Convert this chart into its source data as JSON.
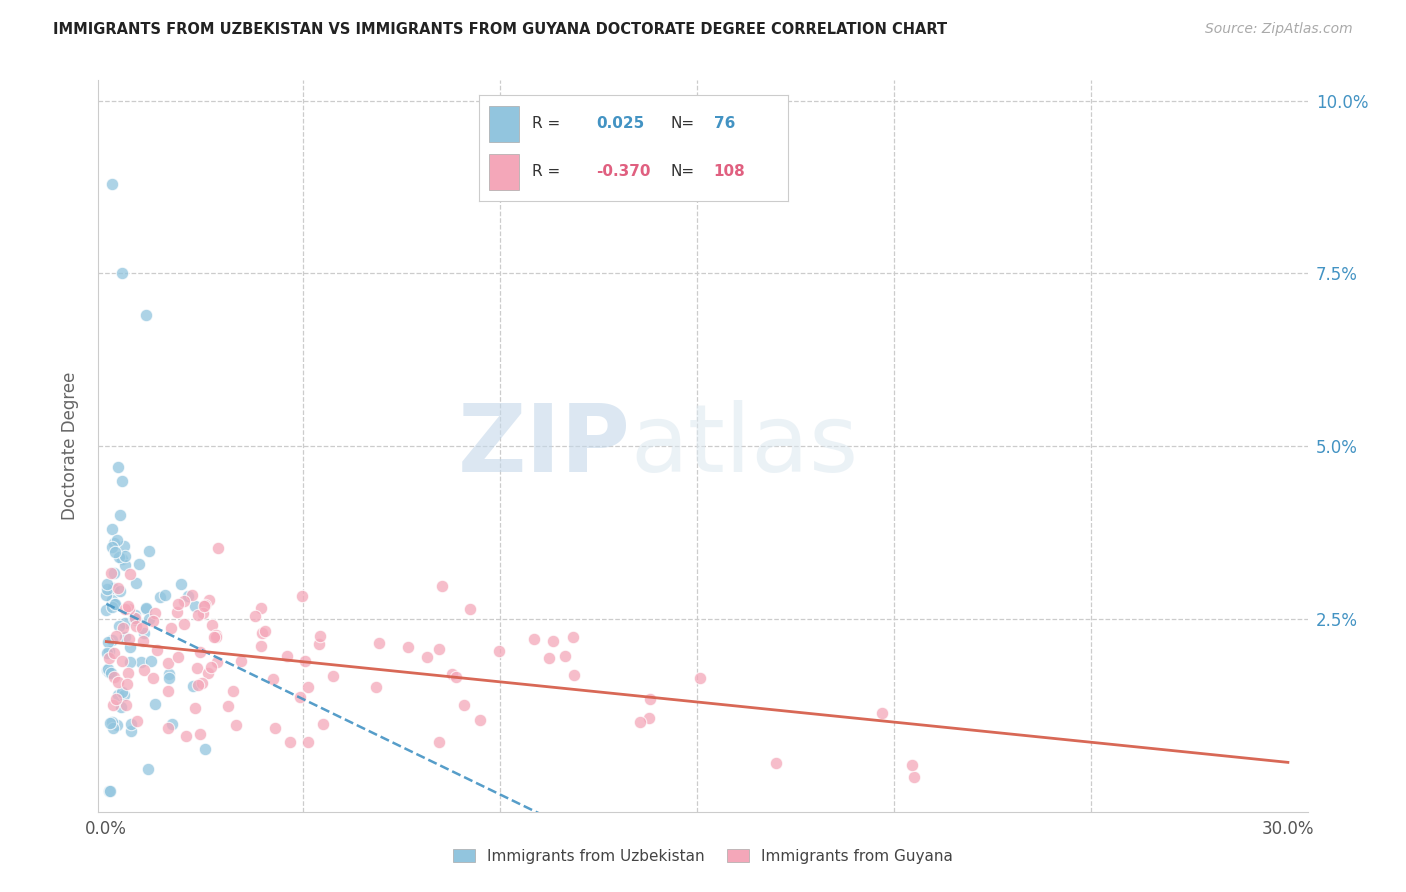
{
  "title": "IMMIGRANTS FROM UZBEKISTAN VS IMMIGRANTS FROM GUYANA DOCTORATE DEGREE CORRELATION CHART",
  "source": "Source: ZipAtlas.com",
  "ylabel": "Doctorate Degree",
  "xlim": [
    -0.002,
    0.305
  ],
  "ylim": [
    -0.003,
    0.103
  ],
  "xticks": [
    0.0,
    0.3
  ],
  "xticklabels": [
    "0.0%",
    "30.0%"
  ],
  "yticks": [
    0.025,
    0.05,
    0.075,
    0.1
  ],
  "yticklabels_right": [
    "2.5%",
    "5.0%",
    "7.5%",
    "10.0%"
  ],
  "color_uzbekistan": "#92c5de",
  "color_guyana": "#f4a7b9",
  "color_uzbekistan_line": "#4393c3",
  "color_guyana_line": "#d6604d",
  "color_tick_labels": "#4393c3",
  "R_uzbekistan": 0.025,
  "N_uzbekistan": 76,
  "R_guyana": -0.37,
  "N_guyana": 108,
  "watermark_zip": "ZIP",
  "watermark_atlas": "atlas",
  "background_color": "#ffffff",
  "grid_color": "#cccccc",
  "legend_uz_label": "Immigrants from Uzbekistan",
  "legend_gy_label": "Immigrants from Guyana"
}
